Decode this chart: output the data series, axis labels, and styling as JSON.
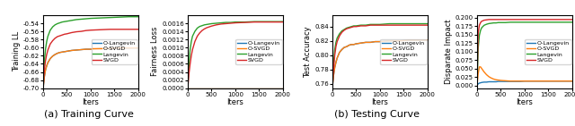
{
  "iters": [
    0,
    25,
    50,
    75,
    100,
    150,
    200,
    250,
    300,
    350,
    400,
    450,
    500,
    600,
    700,
    800,
    900,
    1000,
    1200,
    1400,
    1600,
    1800,
    2000
  ],
  "plot1": {
    "ylabel": "Training LL",
    "xlabel": "Iters",
    "ylim": [
      -0.7,
      -0.52
    ],
    "yticks": [
      -0.7,
      -0.68,
      -0.66,
      -0.64,
      -0.62,
      -0.6,
      -0.58,
      -0.56,
      -0.54
    ],
    "o_langevin": [
      -0.7,
      -0.672,
      -0.655,
      -0.645,
      -0.637,
      -0.627,
      -0.621,
      -0.617,
      -0.614,
      -0.612,
      -0.611,
      -0.61,
      -0.609,
      -0.607,
      -0.606,
      -0.605,
      -0.604,
      -0.604,
      -0.602,
      -0.602,
      -0.601,
      -0.601,
      -0.601
    ],
    "o_svgd": [
      -0.7,
      -0.672,
      -0.655,
      -0.645,
      -0.637,
      -0.627,
      -0.621,
      -0.617,
      -0.614,
      -0.612,
      -0.611,
      -0.61,
      -0.609,
      -0.607,
      -0.606,
      -0.605,
      -0.604,
      -0.604,
      -0.602,
      -0.602,
      -0.601,
      -0.601,
      -0.601
    ],
    "langevin": [
      -0.7,
      -0.635,
      -0.604,
      -0.585,
      -0.572,
      -0.557,
      -0.549,
      -0.544,
      -0.541,
      -0.539,
      -0.537,
      -0.536,
      -0.535,
      -0.533,
      -0.531,
      -0.53,
      -0.529,
      -0.528,
      -0.527,
      -0.526,
      -0.525,
      -0.524,
      -0.524
    ],
    "svgd": [
      -0.7,
      -0.656,
      -0.632,
      -0.617,
      -0.606,
      -0.591,
      -0.583,
      -0.577,
      -0.573,
      -0.571,
      -0.569,
      -0.567,
      -0.566,
      -0.563,
      -0.561,
      -0.56,
      -0.558,
      -0.557,
      -0.556,
      -0.555,
      -0.555,
      -0.555,
      -0.555
    ]
  },
  "plot2": {
    "ylabel": "Fairness Loss",
    "xlabel": "Iters",
    "ylim": [
      0.0,
      0.0018
    ],
    "yticks": [
      0.0,
      0.0002,
      0.0004,
      0.0006,
      0.0008,
      0.001,
      0.0012,
      0.0014,
      0.0016
    ],
    "o_langevin": [
      0.0,
      0.0,
      0.0,
      0.0,
      0.0,
      0.0,
      0.0,
      0.0,
      0.0,
      0.0,
      0.0,
      0.0,
      0.0,
      0.0,
      0.0,
      0.0,
      0.0,
      0.0,
      0.0,
      0.0,
      0.0,
      0.0,
      0.0
    ],
    "o_svgd": [
      0.0,
      0.0,
      0.0,
      0.0,
      0.0,
      0.0,
      0.0,
      0.0,
      0.0,
      0.0,
      0.0,
      0.0,
      0.0,
      0.0,
      0.0,
      0.0,
      0.0,
      0.0,
      0.0,
      0.0,
      0.0,
      0.0,
      0.0
    ],
    "langevin": [
      0.0,
      0.0006,
      0.00095,
      0.00115,
      0.00128,
      0.0014,
      0.00148,
      0.00152,
      0.00154,
      0.00156,
      0.00157,
      0.00158,
      0.00159,
      0.0016,
      0.00161,
      0.00162,
      0.00162,
      0.00163,
      0.00163,
      0.00164,
      0.00164,
      0.00164,
      0.00164
    ],
    "svgd": [
      0.0,
      0.00035,
      0.0006,
      0.0008,
      0.00095,
      0.00115,
      0.00128,
      0.00136,
      0.00142,
      0.00146,
      0.00149,
      0.00151,
      0.00153,
      0.00156,
      0.00158,
      0.00159,
      0.0016,
      0.00161,
      0.00162,
      0.00163,
      0.00163,
      0.00163,
      0.00163
    ]
  },
  "plot3": {
    "ylabel": "Test Accuracy",
    "xlabel": "Iters",
    "ylim": [
      0.754,
      0.856
    ],
    "yticks": [
      0.76,
      0.78,
      0.8,
      0.82,
      0.84
    ],
    "o_langevin": [
      0.755,
      0.772,
      0.783,
      0.79,
      0.796,
      0.804,
      0.808,
      0.811,
      0.812,
      0.814,
      0.815,
      0.815,
      0.816,
      0.817,
      0.818,
      0.818,
      0.819,
      0.819,
      0.82,
      0.82,
      0.821,
      0.821,
      0.821
    ],
    "o_svgd": [
      0.755,
      0.772,
      0.783,
      0.79,
      0.796,
      0.804,
      0.808,
      0.811,
      0.812,
      0.814,
      0.815,
      0.815,
      0.816,
      0.817,
      0.818,
      0.818,
      0.819,
      0.819,
      0.82,
      0.82,
      0.821,
      0.821,
      0.821
    ],
    "langevin": [
      0.755,
      0.789,
      0.808,
      0.818,
      0.824,
      0.83,
      0.834,
      0.836,
      0.838,
      0.839,
      0.84,
      0.841,
      0.841,
      0.842,
      0.842,
      0.843,
      0.843,
      0.843,
      0.844,
      0.844,
      0.844,
      0.844,
      0.844
    ],
    "svgd": [
      0.755,
      0.78,
      0.8,
      0.812,
      0.819,
      0.827,
      0.832,
      0.835,
      0.837,
      0.838,
      0.839,
      0.84,
      0.84,
      0.841,
      0.841,
      0.842,
      0.842,
      0.842,
      0.842,
      0.842,
      0.842,
      0.842,
      0.842
    ]
  },
  "plot4": {
    "ylabel": "Disparate Impact",
    "xlabel": "Iters",
    "ylim": [
      -0.008,
      0.208
    ],
    "yticks": [
      0.0,
      0.025,
      0.05,
      0.075,
      0.1,
      0.125,
      0.15,
      0.175,
      0.2
    ],
    "o_langevin": [
      0.0,
      0.005,
      0.007,
      0.008,
      0.009,
      0.01,
      0.01,
      0.011,
      0.011,
      0.011,
      0.011,
      0.012,
      0.012,
      0.012,
      0.012,
      0.012,
      0.012,
      0.013,
      0.013,
      0.013,
      0.013,
      0.013,
      0.013
    ],
    "o_svgd": [
      0.0,
      0.035,
      0.055,
      0.055,
      0.05,
      0.04,
      0.032,
      0.026,
      0.022,
      0.019,
      0.017,
      0.016,
      0.015,
      0.014,
      0.013,
      0.013,
      0.013,
      0.013,
      0.013,
      0.013,
      0.013,
      0.013,
      0.013
    ],
    "langevin": [
      0.0,
      0.11,
      0.148,
      0.163,
      0.171,
      0.178,
      0.181,
      0.183,
      0.184,
      0.185,
      0.185,
      0.186,
      0.186,
      0.186,
      0.187,
      0.187,
      0.187,
      0.187,
      0.187,
      0.187,
      0.187,
      0.187,
      0.187
    ],
    "svgd": [
      0.0,
      0.155,
      0.178,
      0.186,
      0.19,
      0.193,
      0.194,
      0.195,
      0.195,
      0.195,
      0.195,
      0.195,
      0.195,
      0.195,
      0.195,
      0.195,
      0.195,
      0.195,
      0.195,
      0.195,
      0.195,
      0.195,
      0.195
    ]
  },
  "colors": {
    "o_langevin": "#1f77b4",
    "o_svgd": "#ff7f0e",
    "langevin": "#2ca02c",
    "svgd": "#d62728"
  },
  "legend_labels": [
    "O-Langevin",
    "O-SVGD",
    "Langevin",
    "SVGD"
  ],
  "caption_a": "(a) Training Curve",
  "caption_b": "(b) Testing Curve",
  "linewidth": 1.0
}
